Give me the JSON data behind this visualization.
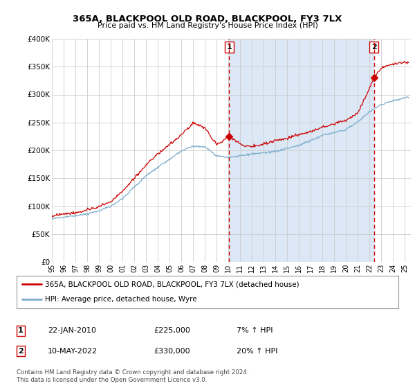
{
  "title": "365A, BLACKPOOL OLD ROAD, BLACKPOOL, FY3 7LX",
  "subtitle": "Price paid vs. HM Land Registry's House Price Index (HPI)",
  "fig_bg_color": "#ffffff",
  "plot_bg_color": "#ffffff",
  "shade_color": "#dce8f5",
  "ylim": [
    0,
    400000
  ],
  "yticks": [
    0,
    50000,
    100000,
    150000,
    200000,
    250000,
    300000,
    350000,
    400000
  ],
  "ytick_labels": [
    "£0",
    "£50K",
    "£100K",
    "£150K",
    "£200K",
    "£250K",
    "£300K",
    "£350K",
    "£400K"
  ],
  "xlim_start": 1995,
  "xlim_end": 2025.5,
  "red_line_color": "#cc0000",
  "blue_line_color": "#7aadcc",
  "marker1_x": 2010.07,
  "marker1_y": 225000,
  "marker2_x": 2022.37,
  "marker2_y": 330000,
  "legend_red_label": "365A, BLACKPOOL OLD ROAD, BLACKPOOL, FY3 7LX (detached house)",
  "legend_blue_label": "HPI: Average price, detached house, Wyre",
  "note1_date": "22-JAN-2010",
  "note1_price": "£225,000",
  "note1_hpi": "7% ↑ HPI",
  "note2_date": "10-MAY-2022",
  "note2_price": "£330,000",
  "note2_hpi": "20% ↑ HPI",
  "footer": "Contains HM Land Registry data © Crown copyright and database right 2024.\nThis data is licensed under the Open Government Licence v3.0.",
  "hpi_anchors_x": [
    1995,
    1996,
    1997,
    1998,
    1999,
    2000,
    2001,
    2002,
    2003,
    2004,
    2005,
    2006,
    2007,
    2008,
    2009,
    2010,
    2011,
    2012,
    2013,
    2014,
    2015,
    2016,
    2017,
    2018,
    2019,
    2020,
    2021,
    2022,
    2023,
    2024,
    2025
  ],
  "hpi_anchors_y": [
    78000,
    80000,
    83000,
    87000,
    92000,
    100000,
    115000,
    135000,
    155000,
    170000,
    185000,
    200000,
    210000,
    208000,
    192000,
    190000,
    193000,
    196000,
    198000,
    200000,
    205000,
    210000,
    218000,
    228000,
    233000,
    238000,
    252000,
    270000,
    283000,
    290000,
    295000
  ],
  "red_anchors_x": [
    1995,
    1996,
    1997,
    1998,
    1999,
    2000,
    2001,
    2002,
    2003,
    2004,
    2005,
    2006,
    2007,
    2008,
    2009,
    2010.07,
    2011,
    2012,
    2013,
    2014,
    2015,
    2016,
    2017,
    2018,
    2019,
    2020,
    2021,
    2022.37,
    2023,
    2024,
    2025
  ],
  "red_anchors_y": [
    82000,
    86000,
    88000,
    93000,
    98000,
    107000,
    125000,
    148000,
    172000,
    192000,
    210000,
    228000,
    248000,
    240000,
    210000,
    225000,
    212000,
    207000,
    212000,
    217000,
    222000,
    228000,
    235000,
    242000,
    248000,
    255000,
    268000,
    330000,
    348000,
    355000,
    358000
  ]
}
